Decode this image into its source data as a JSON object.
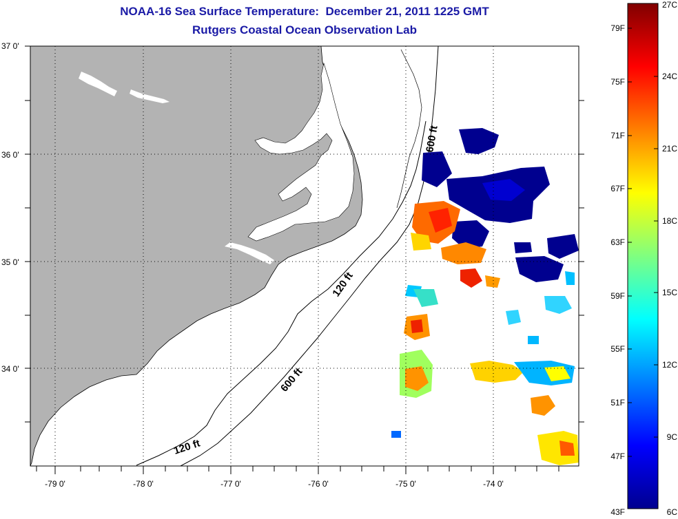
{
  "title": {
    "line1": "NOAA-16 Sea Surface Temperature:  December 21, 2011 1225 GMT",
    "line2": "Rutgers Coastal Ocean Observation Lab"
  },
  "map": {
    "lon_labels": [
      "-79 0'",
      "-78 0'",
      "-77 0'",
      "-76 0'",
      "-75 0'",
      "-74 0'"
    ],
    "lat_labels": [
      "37 0'",
      "36 0'",
      "35 0'",
      "34 0'"
    ],
    "depth_labels": [
      "120 ft",
      "600 ft",
      "120 ft",
      "600 ft"
    ],
    "colors": {
      "land": "#b3b3b3",
      "water": "#ffffff",
      "contour": "#000000"
    }
  },
  "colorbar": {
    "fahrenheit_labels": [
      "79F",
      "75F",
      "71F",
      "67F",
      "63F",
      "59F",
      "55F",
      "51F",
      "47F",
      "43F"
    ],
    "celsius_labels": [
      "27C",
      "24C",
      "21C",
      "18C",
      "15C",
      "12C",
      "9C",
      "6C"
    ],
    "colormap": "jet"
  }
}
